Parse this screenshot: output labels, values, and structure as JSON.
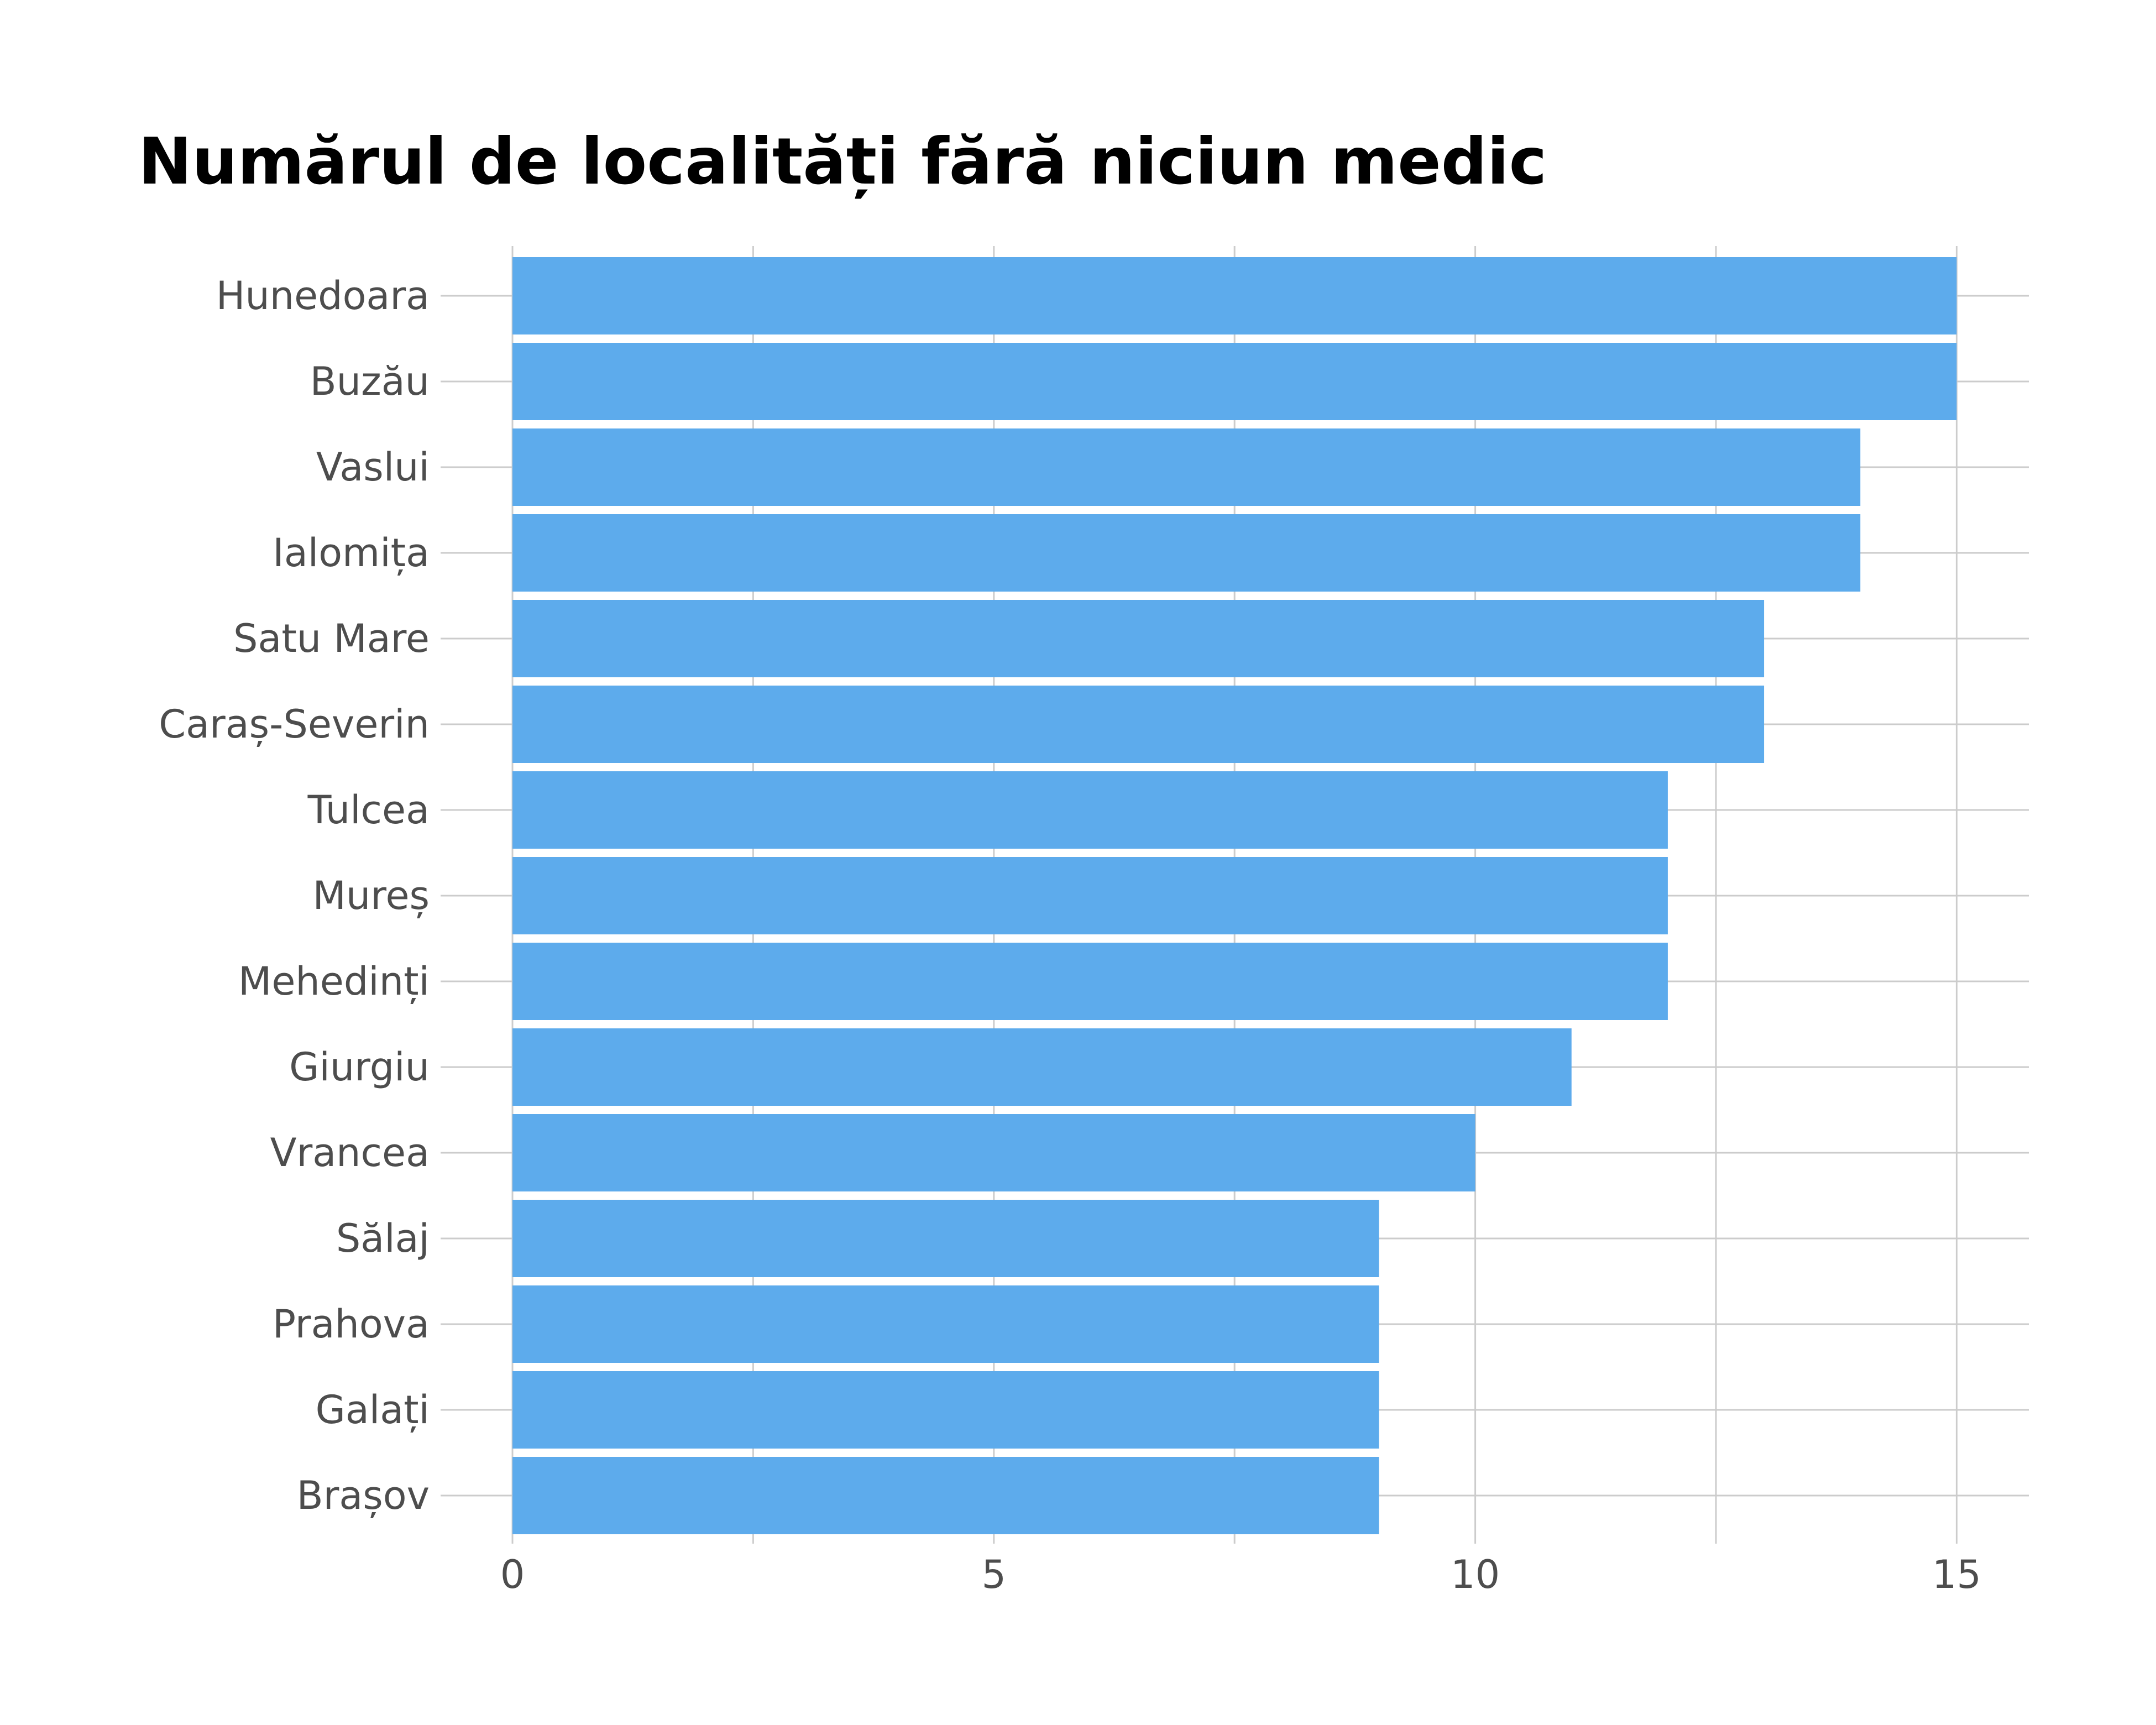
{
  "chart_data": {
    "type": "bar",
    "orientation": "horizontal",
    "title": "Numărul de localități fără niciun medic",
    "xlabel": "",
    "ylabel": "",
    "categories": [
      "Hunedoara",
      "Buzău",
      "Vaslui",
      "Ialomița",
      "Satu Mare",
      "Caraș-Severin",
      "Tulcea",
      "Mureș",
      "Mehedinți",
      "Giurgiu",
      "Vrancea",
      "Sălaj",
      "Prahova",
      "Galați",
      "Brașov"
    ],
    "values": [
      15,
      15,
      14,
      14,
      13,
      13,
      12,
      12,
      12,
      11,
      10,
      9,
      9,
      9,
      9
    ],
    "xlim": [
      0,
      15.75
    ],
    "xticks": [
      0,
      5,
      10,
      15
    ],
    "grid": true,
    "legend": "none",
    "bar_color": "#5DABEC",
    "grid_color": "#CCCCCC"
  }
}
